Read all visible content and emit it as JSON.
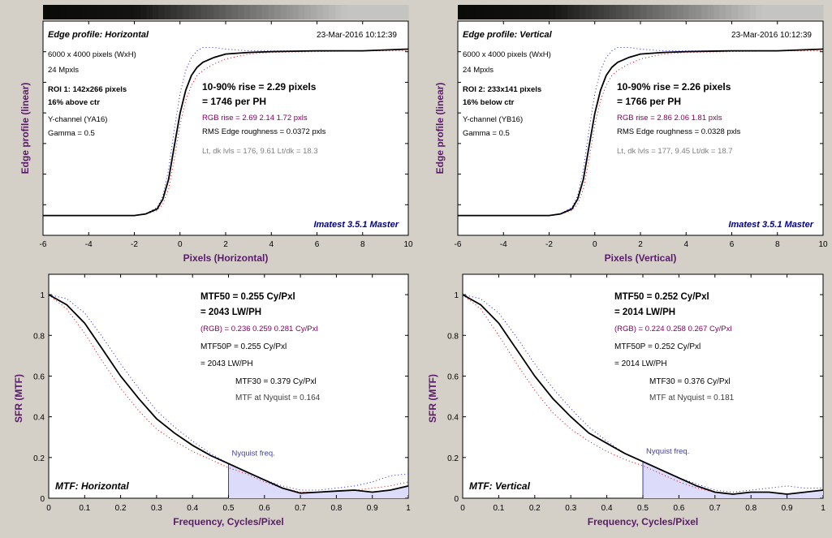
{
  "colors": {
    "background": "#d4d0c8",
    "plot_bg": "#ffffff",
    "curve": "#000000",
    "red": "#e00000",
    "blue": "#2020d0",
    "label": "#5a1a6a",
    "brand": "#00008b",
    "purple_text": "#800060",
    "gray_text": "#808080",
    "nyquist_fill": "#dcdcfa",
    "nyquist_line": "#4040a0"
  },
  "panels": [
    {
      "chart_data": {
        "type": "line",
        "title": "Edge profile: Horizontal",
        "timestamp": "23-Mar-2016 10:12:39",
        "xlabel": "Pixels (Horizontal)",
        "ylabel": "Edge profile (linear)",
        "xlim": [
          -6,
          10
        ],
        "xticks": [
          "-6",
          "-4",
          "-2",
          "0",
          "2",
          "4",
          "6",
          "8",
          "10"
        ],
        "grid": false,
        "brand": "Imatest 3.5.1 Master",
        "info": {
          "size": "6000 x 4000 pixels (WxH)",
          "mpx": "24 Mpxls",
          "roi": "ROI 1:  142x266 pixels",
          "pos": "16% above ctr",
          "channel": "Y-channel  (YA16)",
          "gamma": "Gamma = 0.5"
        },
        "result": {
          "rise": "10-90% rise = 2.29 pixels",
          "ph": "= 1746 per PH",
          "rgb": "RGB rise = 2.69  2.14  1.72 pxls",
          "rms": "RMS Edge roughness = 0.0372 pxls",
          "lt": "Lt, dk lvls = 176, 9.61   Lt/dk = 18.3"
        },
        "series": [
          {
            "color": "black",
            "x": [
              -6,
              -2,
              -1.5,
              -1,
              -0.75,
              -0.5,
              -0.25,
              0,
              0.25,
              0.5,
              0.75,
              1,
              1.5,
              2,
              3,
              4,
              6,
              8,
              10
            ],
            "y": [
              0.0,
              0.0,
              0.01,
              0.04,
              0.1,
              0.22,
              0.42,
              0.62,
              0.76,
              0.85,
              0.9,
              0.93,
              0.96,
              0.98,
              0.99,
              0.995,
              1.0,
              1.0,
              1.01
            ]
          },
          {
            "color": "red",
            "x": [
              -6,
              -2,
              -1.5,
              -1,
              -0.75,
              -0.5,
              -0.25,
              0,
              0.25,
              0.5,
              0.75,
              1,
              1.5,
              2,
              3,
              4,
              6,
              8,
              10
            ],
            "y": [
              0.0,
              0.0,
              0.01,
              0.03,
              0.07,
              0.16,
              0.34,
              0.55,
              0.7,
              0.79,
              0.85,
              0.88,
              0.92,
              0.95,
              0.98,
              0.99,
              0.995,
              1.0,
              1.0
            ]
          },
          {
            "color": "blue",
            "x": [
              -6,
              -2,
              -1.5,
              -1,
              -0.75,
              -0.5,
              -0.25,
              0,
              0.25,
              0.5,
              0.75,
              1,
              1.5,
              2,
              3,
              4,
              6,
              8,
              10
            ],
            "y": [
              0.0,
              0.0,
              0.01,
              0.05,
              0.12,
              0.28,
              0.52,
              0.74,
              0.88,
              0.96,
              1.0,
              1.02,
              1.02,
              1.01,
              1.0,
              1.0,
              1.0,
              1.0,
              1.01
            ]
          }
        ]
      }
    },
    {
      "chart_data": {
        "type": "line",
        "title": "Edge profile: Vertical",
        "timestamp": "23-Mar-2016 10:12:39",
        "xlabel": "Pixels (Vertical)",
        "ylabel": "Edge profile (linear)",
        "xlim": [
          -6,
          10
        ],
        "xticks": [
          "-6",
          "-4",
          "-2",
          "0",
          "2",
          "4",
          "6",
          "8",
          "10"
        ],
        "grid": false,
        "brand": "Imatest 3.5.1 Master",
        "info": {
          "size": "6000 x 4000 pixels (WxH)",
          "mpx": "24 Mpxls",
          "roi": "ROI 2:  233x141 pixels",
          "pos": "16% below ctr",
          "channel": "Y-channel  (YB16)",
          "gamma": "Gamma = 0.5"
        },
        "result": {
          "rise": "10-90% rise = 2.26 pixels",
          "ph": "= 1766 per PH",
          "rgb": "RGB rise = 2.86  2.06  1.81 pxls",
          "rms": "RMS Edge roughness = 0.0328 pxls",
          "lt": "Lt, dk lvls = 177, 9.45   Lt/dk = 18.7"
        },
        "series": [
          {
            "color": "black",
            "x": [
              -6,
              -2,
              -1.5,
              -1,
              -0.75,
              -0.5,
              -0.25,
              0,
              0.25,
              0.5,
              0.75,
              1,
              1.5,
              2,
              3,
              4,
              6,
              8,
              10
            ],
            "y": [
              0.0,
              0.0,
              0.01,
              0.04,
              0.1,
              0.22,
              0.42,
              0.62,
              0.76,
              0.85,
              0.9,
              0.93,
              0.96,
              0.98,
              0.99,
              0.995,
              1.0,
              1.0,
              1.01
            ]
          },
          {
            "color": "red",
            "x": [
              -6,
              -2,
              -1.5,
              -1,
              -0.75,
              -0.5,
              -0.25,
              0,
              0.25,
              0.5,
              0.75,
              1,
              1.5,
              2,
              3,
              4,
              6,
              8,
              10
            ],
            "y": [
              0.0,
              0.0,
              0.01,
              0.03,
              0.07,
              0.16,
              0.34,
              0.55,
              0.7,
              0.79,
              0.85,
              0.88,
              0.92,
              0.95,
              0.98,
              0.99,
              0.995,
              1.0,
              1.0
            ]
          },
          {
            "color": "blue",
            "x": [
              -6,
              -2,
              -1.5,
              -1,
              -0.75,
              -0.5,
              -0.25,
              0,
              0.25,
              0.5,
              0.75,
              1,
              1.5,
              2,
              3,
              4,
              6,
              8,
              10
            ],
            "y": [
              0.0,
              0.0,
              0.01,
              0.05,
              0.12,
              0.28,
              0.52,
              0.74,
              0.88,
              0.96,
              1.0,
              1.02,
              1.02,
              1.01,
              1.0,
              1.0,
              1.0,
              1.0,
              1.01
            ]
          }
        ]
      }
    },
    {
      "chart_data": {
        "type": "line",
        "title": "MTF: Horizontal",
        "xlabel": "Frequency, Cycles/Pixel",
        "ylabel": "SFR (MTF)",
        "xlim": [
          0,
          1
        ],
        "ylim": [
          0,
          1.1
        ],
        "xticks": [
          "0",
          "0.1",
          "0.2",
          "0.3",
          "0.4",
          "0.5",
          "0.6",
          "0.7",
          "0.8",
          "0.9",
          "1"
        ],
        "yticks": [
          "0",
          "0.2",
          "0.4",
          "0.6",
          "0.8",
          "1"
        ],
        "grid": false,
        "nyquist": {
          "x": 0.5,
          "label": "Nyquist freq."
        },
        "result": {
          "mtf50": "MTF50 = 0.255 Cy/Pxl",
          "lwph": "= 2043 LW/PH",
          "rgb": "(RGB) = 0.236  0.259  0.281 Cy/Pxl",
          "mtf50p": "MTF50P = 0.255 Cy/Pxl",
          "lwph2": "= 2043 LW/PH",
          "mtf30": "MTF30 = 0.379 Cy/Pxl",
          "nyq": "MTF at Nyquist = 0.164"
        },
        "series": [
          {
            "color": "black",
            "x": [
              0,
              0.05,
              0.1,
              0.15,
              0.2,
              0.25,
              0.3,
              0.35,
              0.4,
              0.45,
              0.5,
              0.55,
              0.6,
              0.65,
              0.7,
              0.75,
              0.8,
              0.85,
              0.9,
              0.95,
              1.0
            ],
            "y": [
              1.0,
              0.95,
              0.86,
              0.73,
              0.6,
              0.49,
              0.39,
              0.32,
              0.26,
              0.21,
              0.17,
              0.13,
              0.09,
              0.05,
              0.025,
              0.03,
              0.035,
              0.04,
              0.03,
              0.04,
              0.06
            ]
          },
          {
            "color": "red",
            "x": [
              0,
              0.05,
              0.1,
              0.15,
              0.2,
              0.25,
              0.3,
              0.35,
              0.4,
              0.45,
              0.5,
              0.55,
              0.6,
              0.65,
              0.7,
              0.75,
              0.8,
              0.85,
              0.9,
              0.95,
              1.0
            ],
            "y": [
              1.0,
              0.93,
              0.81,
              0.67,
              0.54,
              0.43,
              0.34,
              0.28,
              0.23,
              0.19,
              0.15,
              0.12,
              0.08,
              0.05,
              0.03,
              0.03,
              0.035,
              0.04,
              0.05,
              0.06,
              0.08
            ]
          },
          {
            "color": "blue",
            "x": [
              0,
              0.05,
              0.1,
              0.15,
              0.2,
              0.25,
              0.3,
              0.35,
              0.4,
              0.45,
              0.5,
              0.55,
              0.6,
              0.65,
              0.7,
              0.75,
              0.8,
              0.85,
              0.9,
              0.95,
              1.0
            ],
            "y": [
              1.0,
              0.98,
              0.91,
              0.79,
              0.66,
              0.54,
              0.43,
              0.35,
              0.28,
              0.22,
              0.17,
              0.13,
              0.09,
              0.06,
              0.04,
              0.04,
              0.05,
              0.06,
              0.08,
              0.11,
              0.12
            ]
          }
        ]
      }
    },
    {
      "chart_data": {
        "type": "line",
        "title": "MTF: Vertical",
        "xlabel": "Frequency, Cycles/Pixel",
        "ylabel": "SFR (MTF)",
        "xlim": [
          0,
          1
        ],
        "ylim": [
          0,
          1.1
        ],
        "xticks": [
          "0",
          "0.1",
          "0.2",
          "0.3",
          "0.4",
          "0.5",
          "0.6",
          "0.7",
          "0.8",
          "0.9",
          "1"
        ],
        "yticks": [
          "0",
          "0.2",
          "0.4",
          "0.6",
          "0.8",
          "1"
        ],
        "grid": false,
        "nyquist": {
          "x": 0.5,
          "label": "Nyquist freq."
        },
        "result": {
          "mtf50": "MTF50 = 0.252 Cy/Pxl",
          "lwph": "= 2014 LW/PH",
          "rgb": "(RGB) = 0.224  0.258  0.267 Cy/Pxl",
          "mtf50p": "MTF50P = 0.252 Cy/Pxl",
          "lwph2": "= 2014 LW/PH",
          "mtf30": "MTF30 = 0.376 Cy/Pxl",
          "nyq": "MTF at Nyquist = 0.181"
        },
        "series": [
          {
            "color": "black",
            "x": [
              0,
              0.05,
              0.1,
              0.15,
              0.2,
              0.25,
              0.3,
              0.35,
              0.4,
              0.45,
              0.5,
              0.55,
              0.6,
              0.65,
              0.7,
              0.75,
              0.8,
              0.85,
              0.9,
              0.95,
              1.0
            ],
            "y": [
              1.0,
              0.95,
              0.86,
              0.73,
              0.6,
              0.49,
              0.4,
              0.32,
              0.27,
              0.22,
              0.18,
              0.14,
              0.1,
              0.06,
              0.03,
              0.02,
              0.03,
              0.03,
              0.02,
              0.03,
              0.04
            ]
          },
          {
            "color": "red",
            "x": [
              0,
              0.05,
              0.1,
              0.15,
              0.2,
              0.25,
              0.3,
              0.35,
              0.4,
              0.45,
              0.5,
              0.55,
              0.6,
              0.65,
              0.7,
              0.75,
              0.8,
              0.85,
              0.9,
              0.95,
              1.0
            ],
            "y": [
              1.0,
              0.93,
              0.8,
              0.66,
              0.53,
              0.42,
              0.34,
              0.28,
              0.23,
              0.19,
              0.16,
              0.12,
              0.08,
              0.05,
              0.03,
              0.02,
              0.03,
              0.03,
              0.02,
              0.03,
              0.04
            ]
          },
          {
            "color": "blue",
            "x": [
              0,
              0.05,
              0.1,
              0.15,
              0.2,
              0.25,
              0.3,
              0.35,
              0.4,
              0.45,
              0.5,
              0.55,
              0.6,
              0.65,
              0.7,
              0.75,
              0.8,
              0.85,
              0.9,
              0.95,
              1.0
            ],
            "y": [
              1.0,
              0.98,
              0.91,
              0.79,
              0.66,
              0.54,
              0.44,
              0.35,
              0.28,
              0.22,
              0.18,
              0.14,
              0.1,
              0.07,
              0.04,
              0.03,
              0.04,
              0.05,
              0.06,
              0.05,
              0.05
            ]
          }
        ]
      }
    }
  ]
}
